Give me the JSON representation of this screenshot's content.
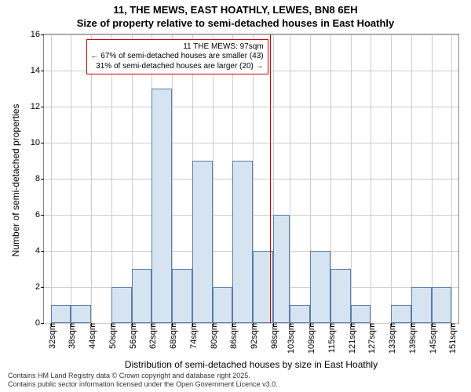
{
  "title": {
    "line1": "11, THE MEWS, EAST HOATHLY, LEWES, BN8 6EH",
    "line2": "Size of property relative to semi-detached houses in East Hoathly",
    "fontsize": 13,
    "color": "#000000"
  },
  "chart": {
    "type": "histogram",
    "y_label": "Number of semi-detached properties",
    "x_label": "Distribution of semi-detached houses by size in East Hoathly",
    "ylim": [
      0,
      16
    ],
    "ytick_step": 2,
    "background_color": "#ffffff",
    "grid_color": "#cccccc",
    "border_color": "#888888",
    "bar_fill": "#d6e4f2",
    "bar_border": "#5a7ca8",
    "marker_color": "#cc0000",
    "label_fontsize": 12,
    "tick_fontsize": 11,
    "yticks": [
      0,
      2,
      4,
      6,
      8,
      10,
      12,
      14,
      16
    ],
    "xticks": [
      "32sqm",
      "38sqm",
      "44sqm",
      "50sqm",
      "56sqm",
      "62sqm",
      "68sqm",
      "74sqm",
      "80sqm",
      "86sqm",
      "92sqm",
      "98sqm",
      "103sqm",
      "109sqm",
      "115sqm",
      "121sqm",
      "127sqm",
      "133sqm",
      "139sqm",
      "145sqm",
      "151sqm"
    ],
    "bars": [
      {
        "start": 32,
        "end": 38,
        "value": 1
      },
      {
        "start": 38,
        "end": 44,
        "value": 1
      },
      {
        "start": 50,
        "end": 56,
        "value": 2
      },
      {
        "start": 56,
        "end": 62,
        "value": 3
      },
      {
        "start": 62,
        "end": 68,
        "value": 13
      },
      {
        "start": 68,
        "end": 74,
        "value": 3
      },
      {
        "start": 74,
        "end": 80,
        "value": 9
      },
      {
        "start": 80,
        "end": 86,
        "value": 2
      },
      {
        "start": 86,
        "end": 92,
        "value": 9
      },
      {
        "start": 92,
        "end": 98,
        "value": 4
      },
      {
        "start": 98,
        "end": 103,
        "value": 6
      },
      {
        "start": 103,
        "end": 109,
        "value": 1
      },
      {
        "start": 109,
        "end": 115,
        "value": 4
      },
      {
        "start": 115,
        "end": 121,
        "value": 3
      },
      {
        "start": 121,
        "end": 127,
        "value": 1
      },
      {
        "start": 133,
        "end": 139,
        "value": 1
      },
      {
        "start": 139,
        "end": 145,
        "value": 2
      },
      {
        "start": 145,
        "end": 151,
        "value": 2
      }
    ],
    "x_range": [
      30,
      153
    ],
    "marker_x": 97,
    "annotation": {
      "line1": "11 THE MEWS: 97sqm",
      "line2": "← 67% of semi-detached houses are smaller (43)",
      "line3": "31% of semi-detached houses are larger (20) →",
      "fontsize": 10
    }
  },
  "footer": {
    "line1": "Contains HM Land Registry data © Crown copyright and database right 2025.",
    "line2": "Contains public sector information licensed under the Open Government Licence v3.0.",
    "fontsize": 9,
    "color": "#333333"
  }
}
